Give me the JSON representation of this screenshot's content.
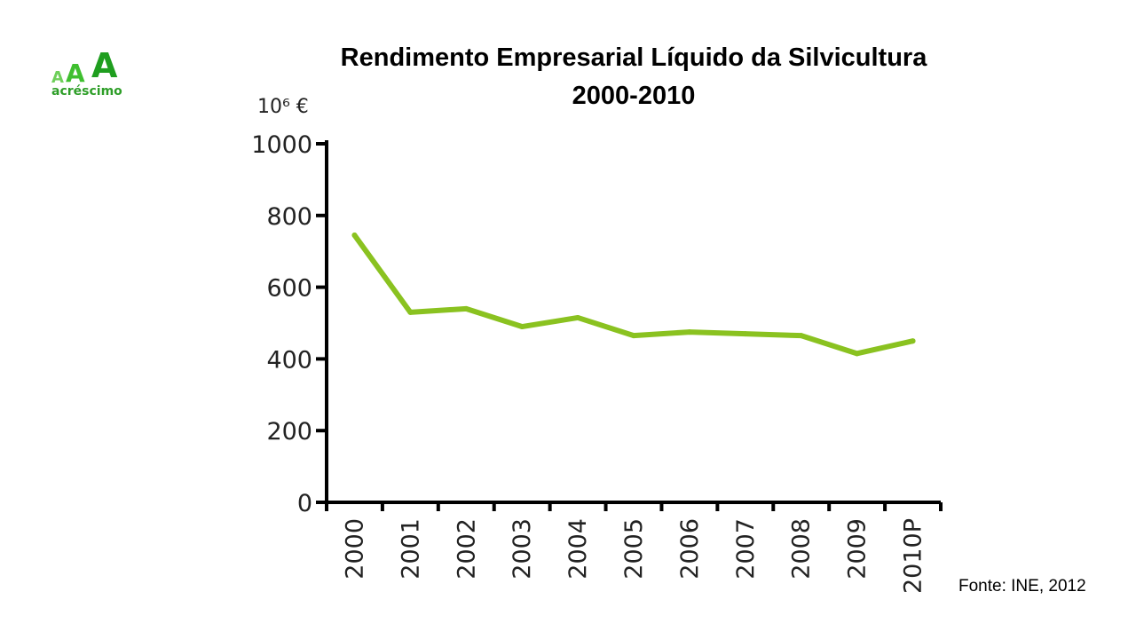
{
  "logo": {
    "letters": [
      "A",
      "A",
      "A"
    ],
    "word": "acréscimo",
    "colors": [
      "#6ecf5a",
      "#3fbf2f",
      "#1f9e1f"
    ],
    "word_color": "#2e9e28"
  },
  "title": {
    "line1": "Rendimento Empresarial  Líquido da Silvicultura",
    "line2": "2000-2010"
  },
  "source": "Fonte: INE, 2012",
  "chart_data": {
    "type": "line",
    "title": "Rendimento Empresarial  Líquido da Silvicultura 2000-2010",
    "ylabel": "10⁶ €",
    "xlabel": "",
    "categories": [
      "2000",
      "2001",
      "2002",
      "2003",
      "2004",
      "2005",
      "2006",
      "2007",
      "2008",
      "2009",
      "2010P"
    ],
    "series": [
      {
        "values": [
          745,
          530,
          540,
          490,
          515,
          465,
          475,
          470,
          465,
          415,
          450
        ],
        "color": "#8ac220"
      }
    ],
    "ylim": [
      0,
      1000
    ],
    "yticks": [
      "0",
      "200",
      "400",
      "600",
      "800",
      "1000"
    ],
    "grid": false,
    "legend": "none"
  }
}
